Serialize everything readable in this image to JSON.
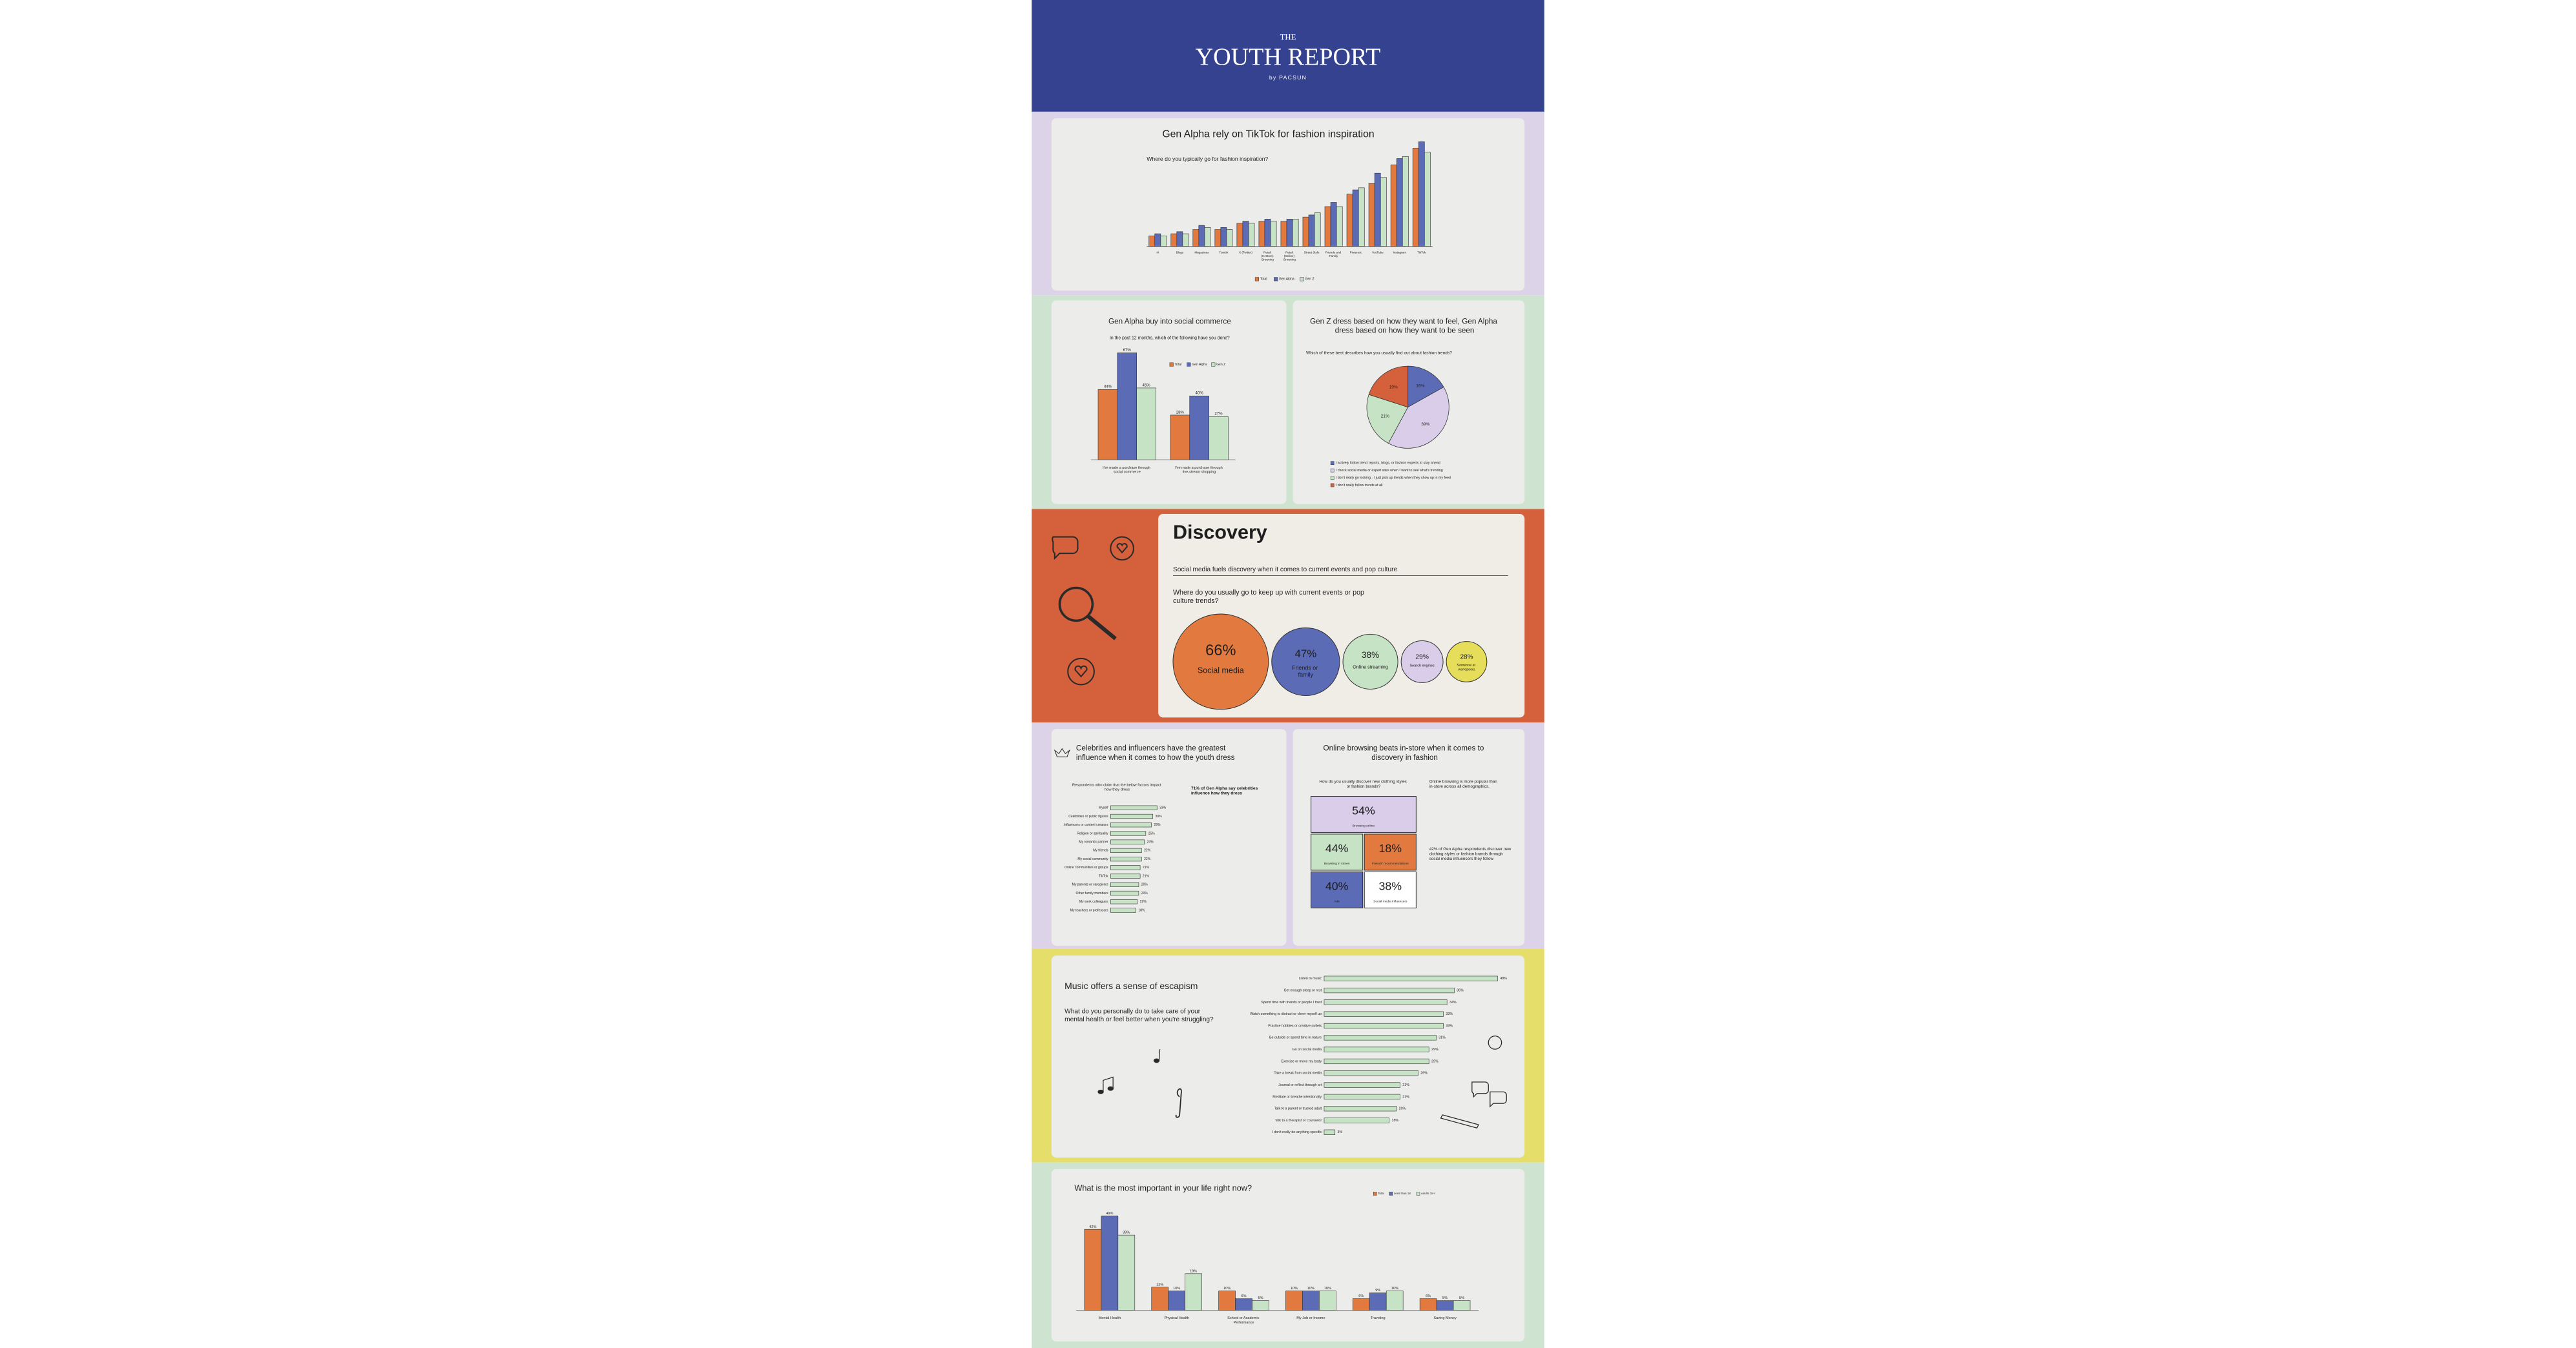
{
  "header": {
    "kicker": "THE",
    "title": "YOUTH REPORT",
    "byline": "by PACSUN"
  },
  "chart_data": [
    {
      "type": "bar",
      "title": "Gen Alpha rely on TikTok for fashion inspiration",
      "subtitle": "Where do you typically go for fashion inspiration?",
      "categories": [
        "AI",
        "Blogs",
        "Magazines",
        "Tumblr",
        "X (Twitter)",
        "Retail (In-Store) Browsing",
        "Retail (Online) Browsing",
        "Street Style",
        "Friends and Family",
        "Pinterest",
        "YouTube",
        "Instagram",
        "TikTok"
      ],
      "series": [
        {
          "name": "Total",
          "color": "#e27a3f",
          "values": [
            5,
            6,
            8,
            8,
            11,
            12,
            12,
            14,
            19,
            25,
            30,
            39,
            47
          ]
        },
        {
          "name": "Gen Alpha",
          "color": "#5b6bb5",
          "values": [
            6,
            7,
            10,
            9,
            12,
            13,
            13,
            15,
            21,
            27,
            35,
            42,
            50
          ]
        },
        {
          "name": "Gen Z",
          "color": "#c7e3c5",
          "values": [
            5,
            6,
            9,
            8,
            11,
            12,
            13,
            16,
            19,
            28,
            33,
            43,
            45
          ]
        }
      ],
      "ylim": [
        0,
        55
      ]
    },
    {
      "type": "bar",
      "title": "Gen Alpha buy into social commerce",
      "subtitle": "In the past 12 months, which of the following have you done?",
      "categories": [
        "I've made a purchase through social commerce",
        "I've made a purchase through live-stream shopping"
      ],
      "series": [
        {
          "name": "Total",
          "color": "#e27a3f",
          "values": [
            44,
            28
          ],
          "value_labels": [
            "44%",
            "28%"
          ]
        },
        {
          "name": "Gen Alpha",
          "color": "#5b6bb5",
          "values": [
            67,
            40
          ],
          "value_labels": [
            "67%",
            "40%"
          ]
        },
        {
          "name": "Gen Z",
          "color": "#c7e3c5",
          "values": [
            45,
            27
          ],
          "value_labels": [
            "45%",
            "27%"
          ]
        }
      ],
      "ylim": [
        0,
        70
      ]
    },
    {
      "type": "pie",
      "title": "Gen Z dress based on how they want to feel, Gen Alpha dress based on how they want to be seen",
      "subtitle": "Which of these best describes how you usually find out about fashion trends?",
      "categories": [
        "I actively follow trend reports, blogs, or fashion experts to stay ahead",
        "I check social media or expert sites when I want to see what's trending",
        "I don't really go looking - I just pick up trends when they show up in my feed",
        "I don't really follow trends at all"
      ],
      "values": [
        16,
        39,
        21,
        19
      ],
      "value_labels": [
        "16%",
        "39%",
        "21%",
        "19%"
      ],
      "colors": [
        "#5b6bb5",
        "#d9cdea",
        "#c7e3c5",
        "#d4603c"
      ]
    },
    {
      "type": "bubble",
      "title": "Discovery",
      "subtitle": "Social media fuels discovery when it comes to current events and pop culture",
      "question": "Where do you usually go to keep up with current events or pop culture trends?",
      "categories": [
        "Social media",
        "Friends or family",
        "Online streaming",
        "Search engines",
        "Someone at work/peers"
      ],
      "values": [
        66,
        47,
        38,
        29,
        28
      ],
      "value_labels": [
        "66%",
        "47%",
        "38%",
        "29%",
        "28%"
      ],
      "colors": [
        "#e27a3f",
        "#5b6bb5",
        "#c7e3c5",
        "#d9cdea",
        "#e6de5a"
      ]
    },
    {
      "type": "hbar",
      "title": "Celebrities and influencers have the greatest influence when it comes to how the youth dress",
      "subtitle": "Respondents who claim that the below factors impact how they dress",
      "annotations": [
        "71% of Gen Alpha say celebrities influence how they dress"
      ],
      "categories": [
        "Myself",
        "Celebrities or public figures",
        "Influencers or content creators",
        "Religion or spirituality",
        "My romantic partner",
        "My friends",
        "My social community",
        "Online communities or groups",
        "TikTok",
        "My parents or caregivers",
        "Other family members",
        "My work colleagues",
        "My teachers or professors"
      ],
      "values": [
        33,
        30,
        29,
        25,
        24,
        22,
        22,
        21,
        21,
        20,
        20,
        19,
        18
      ],
      "value_labels": [
        "33%",
        "30%",
        "29%",
        "25%",
        "24%",
        "22%",
        "22%",
        "21%",
        "21%",
        "20%",
        "20%",
        "19%",
        "18%"
      ],
      "color": "#c7e3c5",
      "xlim": [
        0,
        35
      ]
    },
    {
      "type": "tiles",
      "title": "Online browsing beats in-store when it comes to discovery in fashion",
      "subtitle": "How do you usually discover new clothing styles or fashion brands?",
      "annotations": [
        "Online browsing is more popular than in-store across all demographics.",
        "42% of Gen Alpha respondents discover new clothing styles or fashion brands through social media influencers they follow"
      ],
      "categories": [
        "Browsing online",
        "Browsing in stores",
        "Friends' recommendations",
        "Ads",
        "Social media influencers"
      ],
      "values": [
        54,
        44,
        18,
        40,
        38
      ],
      "value_labels": [
        "54%",
        "44%",
        "18%",
        "40%",
        "38%"
      ],
      "colors": [
        "#d9cdea",
        "#c7e3c5",
        "#e27a3f",
        "#5b6bb5",
        "#ffffff"
      ]
    },
    {
      "type": "hbar",
      "title": "Music offers a sense of escapism",
      "subtitle": "What do you personally do to take care of your mental health or feel better when you're struggling?",
      "categories": [
        "Listen to music",
        "Get enough sleep or rest",
        "Spend time with friends or people I trust",
        "Watch something to distract or cheer myself up",
        "Practice hobbies or creative outlets",
        "Be outside or spend time in nature",
        "Go on social media",
        "Exercise or move my body",
        "Take a break from social media",
        "Journal or reflect through art",
        "Meditate or breathe intentionally",
        "Talk to a parent or trusted adult",
        "Talk to a therapist or counselor",
        "I don't really do anything specific"
      ],
      "values": [
        48,
        36,
        34,
        33,
        33,
        31,
        29,
        29,
        26,
        21,
        21,
        20,
        18,
        3
      ],
      "value_labels": [
        "48%",
        "36%",
        "34%",
        "33%",
        "33%",
        "31%",
        "29%",
        "29%",
        "26%",
        "21%",
        "21%",
        "20%",
        "18%",
        "3%"
      ],
      "color": "#c7e3c5",
      "xlim": [
        0,
        50
      ]
    },
    {
      "type": "bar",
      "title": "What is the most important in your life right now?",
      "categories": [
        "Mental Health",
        "Physical Health",
        "School or Academic Performance",
        "My Job or Income",
        "Traveling",
        "Saving Money"
      ],
      "series": [
        {
          "name": "Total",
          "color": "#e27a3f",
          "values": [
            42,
            12,
            10,
            10,
            6,
            6
          ],
          "value_labels": [
            "42%",
            "12%",
            "10%",
            "10%",
            "6%",
            "6%"
          ]
        },
        {
          "name": "Less than 18",
          "color": "#5b6bb5",
          "values": [
            49,
            10,
            6,
            10,
            9,
            5
          ],
          "value_labels": [
            "49%",
            "10%",
            "6%",
            "10%",
            "9%",
            "5%"
          ]
        },
        {
          "name": "Adults 18+",
          "color": "#c7e3c5",
          "values": [
            39,
            19,
            5,
            10,
            10,
            5
          ],
          "value_labels": [
            "39%",
            "19%",
            "5%",
            "10%",
            "10%",
            "5%"
          ]
        }
      ],
      "ylim": [
        0,
        52
      ]
    }
  ]
}
